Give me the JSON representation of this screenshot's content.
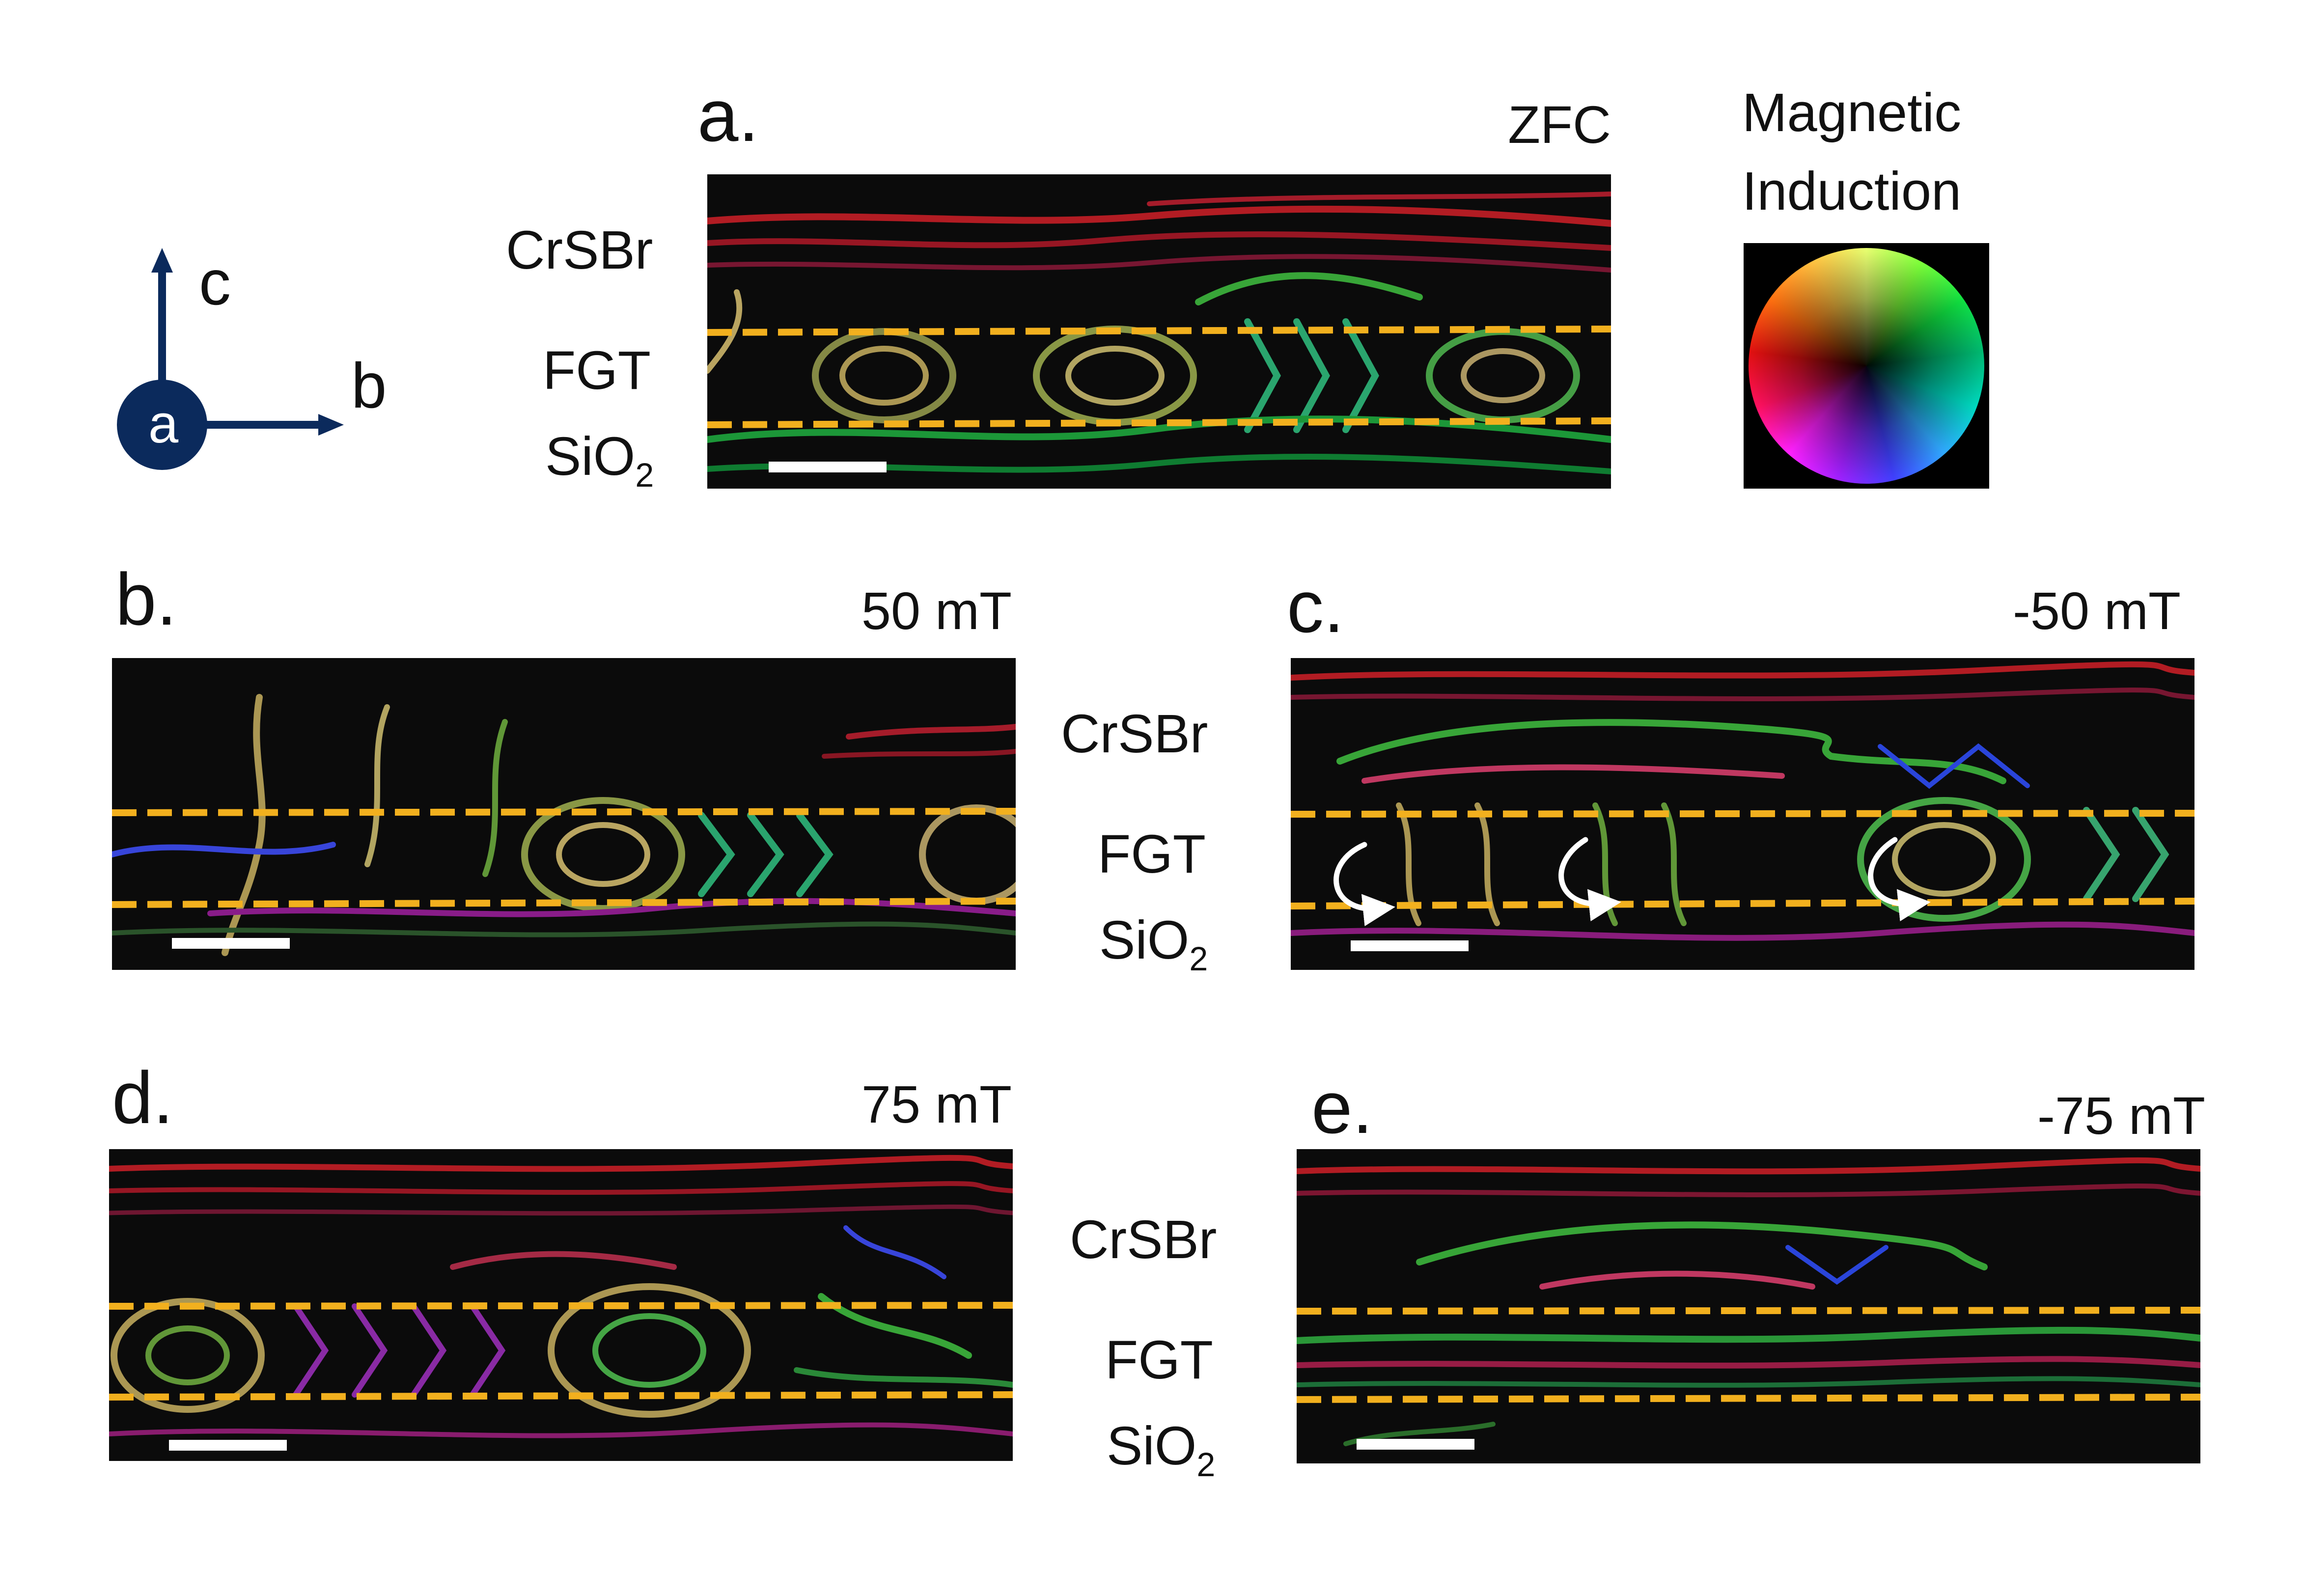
{
  "axes_legend": {
    "up": "c",
    "right": "b",
    "origin": "a"
  },
  "colorwheel": {
    "title_line1": "Magnetic",
    "title_line2": "Induction"
  },
  "layers": {
    "top": "CrSBr",
    "middle": "FGT",
    "bottom": "SiO",
    "bottom_sub": "2"
  },
  "panels": [
    {
      "id": "a",
      "letter": "a.",
      "field": "ZFC"
    },
    {
      "id": "b",
      "letter": "b.",
      "field": "50 mT"
    },
    {
      "id": "c",
      "letter": "c.",
      "field": "-50 mT"
    },
    {
      "id": "d",
      "letter": "d.",
      "field": "75 mT"
    },
    {
      "id": "e",
      "letter": "e.",
      "field": "-75 mT"
    }
  ],
  "colors": {
    "interface_line": "#f2b01e",
    "scale_bar": "#ffffff",
    "axis_arrow": "#0b2a5c"
  }
}
